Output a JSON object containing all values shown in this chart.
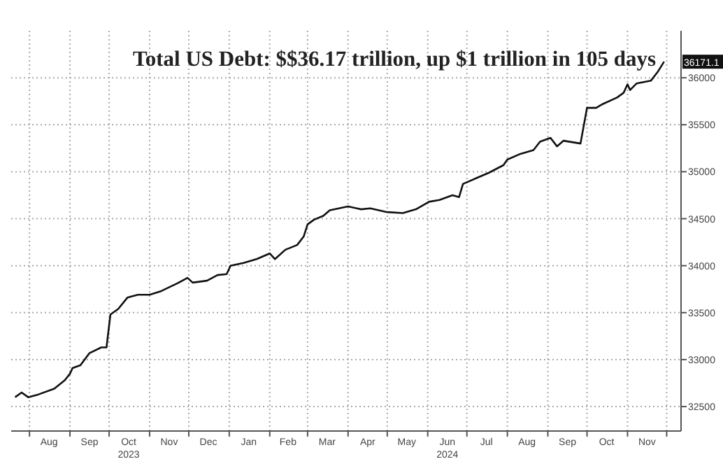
{
  "chart_data": {
    "type": "line",
    "title": "Total US Debt: $$36.17 trillion, up $1 trillion in 105 days",
    "x": [
      "2023-07-21",
      "2023-07-26",
      "2023-07-31",
      "2023-08-08",
      "2023-08-20",
      "2023-08-28",
      "2023-09-01",
      "2023-09-03",
      "2023-09-09",
      "2023-09-16",
      "2023-09-25",
      "2023-09-29",
      "2023-10-02",
      "2023-10-08",
      "2023-10-15",
      "2023-10-23",
      "2023-11-01",
      "2023-11-10",
      "2023-11-22",
      "2023-11-30",
      "2023-12-04",
      "2023-12-15",
      "2023-12-23",
      "2023-12-30",
      "2024-01-02",
      "2024-01-12",
      "2024-01-22",
      "2024-02-01",
      "2024-02-05",
      "2024-02-13",
      "2024-02-22",
      "2024-02-27",
      "2024-03-01",
      "2024-03-06",
      "2024-03-13",
      "2024-03-18",
      "2024-04-01",
      "2024-04-11",
      "2024-04-18",
      "2024-05-01",
      "2024-05-13",
      "2024-05-23",
      "2024-06-02",
      "2024-06-10",
      "2024-06-20",
      "2024-06-25",
      "2024-06-28",
      "2024-07-08",
      "2024-07-18",
      "2024-07-29",
      "2024-08-01",
      "2024-08-11",
      "2024-08-21",
      "2024-08-26",
      "2024-09-03",
      "2024-09-08",
      "2024-09-13",
      "2024-09-26",
      "2024-10-01",
      "2024-10-08",
      "2024-10-13",
      "2024-10-24",
      "2024-10-29",
      "2024-11-01",
      "2024-11-03",
      "2024-11-08",
      "2024-11-19",
      "2024-11-24",
      "2024-11-29"
    ],
    "series": [
      {
        "color": "#111111",
        "values": [
          32600,
          32650,
          32600,
          32630,
          32690,
          32780,
          32850,
          32910,
          32940,
          33070,
          33130,
          33130,
          33480,
          33540,
          33660,
          33690,
          33690,
          33730,
          33810,
          33870,
          33820,
          33840,
          33900,
          33910,
          34000,
          34030,
          34070,
          34130,
          34070,
          34170,
          34220,
          34310,
          34440,
          34490,
          34530,
          34590,
          34630,
          34600,
          34610,
          34570,
          34560,
          34600,
          34680,
          34700,
          34750,
          34730,
          34870,
          34930,
          34990,
          35070,
          35130,
          35190,
          35230,
          35320,
          35360,
          35270,
          35330,
          35300,
          35680,
          35680,
          35720,
          35790,
          35840,
          35930,
          35870,
          35940,
          35970,
          36060,
          36171.1
        ]
      }
    ],
    "xlim": [
      "2023-07-18",
      "2024-12-12"
    ],
    "xticks": [
      {
        "value": "2023-08-01",
        "label": null
      },
      {
        "value": "2023-08-16",
        "label": "Aug"
      },
      {
        "value": "2023-09-01",
        "label": null
      },
      {
        "value": "2023-09-16",
        "label": "Sep"
      },
      {
        "value": "2023-10-01",
        "label": null
      },
      {
        "value": "2023-10-16",
        "label": "Oct\n2023"
      },
      {
        "value": "2023-11-01",
        "label": null
      },
      {
        "value": "2023-11-16",
        "label": "Nov"
      },
      {
        "value": "2023-12-01",
        "label": null
      },
      {
        "value": "2023-12-16",
        "label": "Dec"
      },
      {
        "value": "2024-01-01",
        "label": null
      },
      {
        "value": "2024-01-16",
        "label": "Jan"
      },
      {
        "value": "2024-02-01",
        "label": null
      },
      {
        "value": "2024-02-15",
        "label": "Feb"
      },
      {
        "value": "2024-03-01",
        "label": null
      },
      {
        "value": "2024-03-16",
        "label": "Mar"
      },
      {
        "value": "2024-04-01",
        "label": null
      },
      {
        "value": "2024-04-16",
        "label": "Apr"
      },
      {
        "value": "2024-05-01",
        "label": null
      },
      {
        "value": "2024-05-16",
        "label": "May"
      },
      {
        "value": "2024-06-01",
        "label": null
      },
      {
        "value": "2024-06-16",
        "label": "Jun\n2024"
      },
      {
        "value": "2024-07-01",
        "label": null
      },
      {
        "value": "2024-07-16",
        "label": "Jul"
      },
      {
        "value": "2024-08-01",
        "label": null
      },
      {
        "value": "2024-08-16",
        "label": "Aug"
      },
      {
        "value": "2024-09-01",
        "label": null
      },
      {
        "value": "2024-09-16",
        "label": "Sep"
      },
      {
        "value": "2024-10-01",
        "label": null
      },
      {
        "value": "2024-10-16",
        "label": "Oct"
      },
      {
        "value": "2024-11-01",
        "label": null
      },
      {
        "value": "2024-11-16",
        "label": "Nov"
      },
      {
        "value": "2024-12-01",
        "label": null
      }
    ],
    "ylim": [
      32240,
      36500
    ],
    "yticks": [
      32500,
      33000,
      33500,
      34000,
      34500,
      35000,
      35500,
      36000
    ],
    "grid": true,
    "annotations": [
      {
        "text": "36171.1",
        "x": "2024-11-29",
        "y": 36171.1
      }
    ]
  }
}
